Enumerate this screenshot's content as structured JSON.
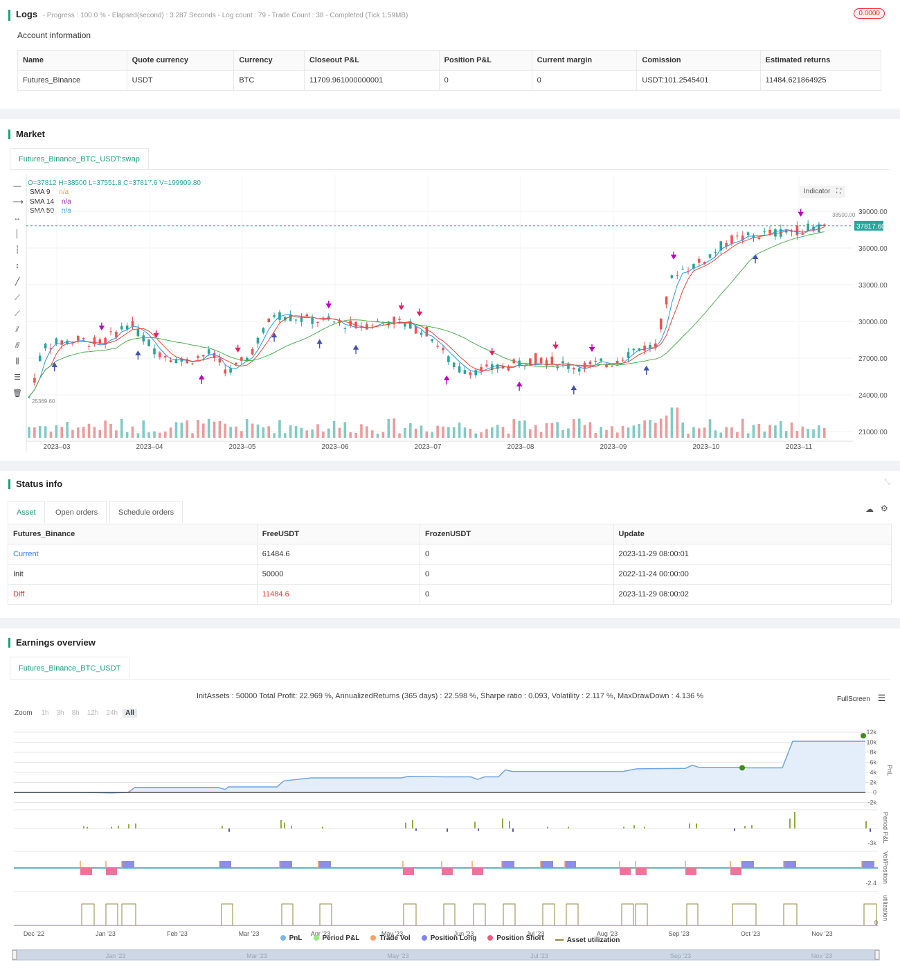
{
  "logs": {
    "title": "Logs",
    "summary": "- Progress : 100.0 % - Elapsed(second) : 3.287 Seconds - Log count : 79 - Trade Count : 38 - Completed (Tick 1.59MB)",
    "badge": "0.0000"
  },
  "account": {
    "heading": "Account information",
    "columns": [
      "Name",
      "Quote currency",
      "Currency",
      "Closeout P&L",
      "Position P&L",
      "Current margin",
      "Comission",
      "Estimated returns"
    ],
    "row": [
      "Futures_Binance",
      "USDT",
      "BTC",
      "11709.961000000001",
      "0",
      "0",
      "USDT:101.2545401",
      "11484.621864925"
    ]
  },
  "market": {
    "title": "Market",
    "tab": "Futures_Binance_BTC_USDT:swap",
    "ohlc": "O=37812 H=38500 L=37551.8 C=37817.6 V=199909.80",
    "sma9": {
      "label": "SMA 9",
      "value": "n/a",
      "color": "#f0a030"
    },
    "sma14": {
      "label": "SMA 14",
      "value": "n/a",
      "color": "#9c27b0"
    },
    "sma50": {
      "label": "SMA 50",
      "value": "n/a",
      "color": "#2196f3"
    },
    "indicator_btn": "Indicator",
    "last_price": "37817.60",
    "high_label": "38500.00",
    "low_label": "25369.60",
    "y_ticks": [
      "39000.00",
      "36000.00",
      "33000.00",
      "30000.00",
      "27000.00",
      "24000.00",
      "21000.00"
    ],
    "x_ticks": [
      "2023–03",
      "2023–04",
      "2023–05",
      "2023–06",
      "2023–07",
      "2023–08",
      "2023–09",
      "2023–10",
      "2023–11"
    ],
    "colors": {
      "up": "#26a69a",
      "down": "#ef5350",
      "sma_fast": "#2196f3",
      "sma_mid": "#f44336",
      "sma_slow": "#4caf50",
      "buy": "#3f51b5",
      "sell": "#e91e63",
      "close": "#c000c0"
    }
  },
  "status": {
    "title": "Status info",
    "tabs": [
      "Asset",
      "Open orders",
      "Schedule orders"
    ],
    "columns": [
      "Futures_Binance",
      "FreeUSDT",
      "FrozenUSDT",
      "Update"
    ],
    "rows": [
      {
        "name": "Current",
        "free": "61484.6",
        "frozen": "0",
        "update": "2023-11-29 08:00:01"
      },
      {
        "name": "Init",
        "free": "50000",
        "frozen": "0",
        "update": "2022-11-24 00:00:00"
      },
      {
        "name": "Diff",
        "free": "11484.6",
        "frozen": "0",
        "update": "2023-11-29 08:00:02"
      }
    ]
  },
  "earnings": {
    "title": "Earnings overview",
    "tab": "Futures_Binance_BTC_USDT",
    "stats": "InitAssets : 50000 Total Profit: 22.969 %, AnnualizedReturns (365 days) : 22.598 %, Sharpe ratio : 0.093, Volatility : 2.117 %, MaxDrawDown : 4.136 %",
    "fullscreen": "FullScreen",
    "zoom_label": "Zoom",
    "zoom_options": [
      "1h",
      "3h",
      "8h",
      "12h",
      "24h",
      "All"
    ],
    "pnl_ticks": [
      "12k",
      "10k",
      "8k",
      "6k",
      "4k",
      "2k",
      "0",
      "-2k"
    ],
    "pnl_axis": "PnL",
    "period_axis": "Period P&L",
    "period_tick": "-3k",
    "vol_axis": "Vol/Position",
    "vol_tick": "-2.4",
    "util_axis": "utilization",
    "util_tick": "0",
    "x_ticks": [
      "Dec '22",
      "Jan '23",
      "Feb '23",
      "Mar '23",
      "Apr '23",
      "May '23",
      "Jun '23",
      "Jul '23",
      "Aug '23",
      "Sep '23",
      "Oct '23",
      "Nov '23"
    ],
    "nav_ticks": [
      "Jan '23",
      "Mar '23",
      "May '23",
      "Jul '23",
      "Sep '23",
      "Nov '23"
    ],
    "legend": [
      {
        "label": "PnL",
        "color": "#7cb5ec"
      },
      {
        "label": "Period P&L",
        "color": "#90ed7d"
      },
      {
        "label": "Trade Vol",
        "color": "#f7a35c"
      },
      {
        "label": "Position Long",
        "color": "#8085e9"
      },
      {
        "label": "Position Short",
        "color": "#f15c80"
      },
      {
        "label": "Asset utilization",
        "color": "#8d8a3a"
      }
    ]
  }
}
